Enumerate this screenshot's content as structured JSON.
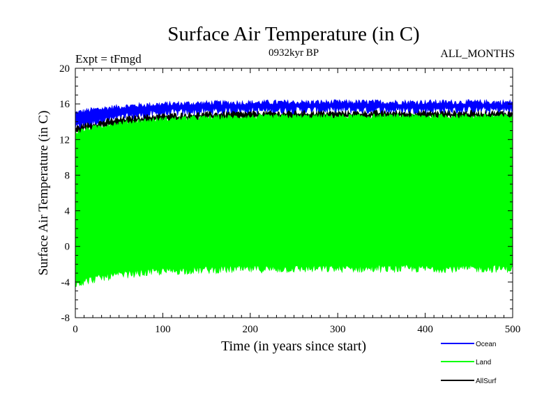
{
  "chart_data": {
    "type": "line",
    "title": "Surface Air Temperature (in C)",
    "subtitle": "0932kyr BP",
    "expt_label": "Expt = tFmgd",
    "months_label": "ALL_MONTHS",
    "xlabel": "Time (in years since start)",
    "ylabel": "Surface Air Temperature (in C)",
    "xlim": [
      0,
      500
    ],
    "ylim": [
      -8,
      20
    ],
    "xticks": [
      0,
      100,
      200,
      300,
      400,
      500
    ],
    "yticks": [
      -8,
      -4,
      0,
      4,
      8,
      12,
      16,
      20
    ],
    "series": [
      {
        "name": "Ocean",
        "color": "#0000ff",
        "description": "seasonal cycle band",
        "start_range": [
          13.3,
          15.0
        ],
        "end_range": [
          15.3,
          16.2
        ]
      },
      {
        "name": "Land",
        "color": "#00ff00",
        "description": "seasonal cycle band",
        "start_range": [
          -4.2,
          12.8
        ],
        "end_range": [
          -2.5,
          14.6
        ]
      },
      {
        "name": "AllSurf",
        "color": "#000000",
        "description": "seasonal cycle band",
        "start_range": [
          12.8,
          13.3
        ],
        "end_range": [
          14.4,
          15.0
        ]
      }
    ]
  }
}
